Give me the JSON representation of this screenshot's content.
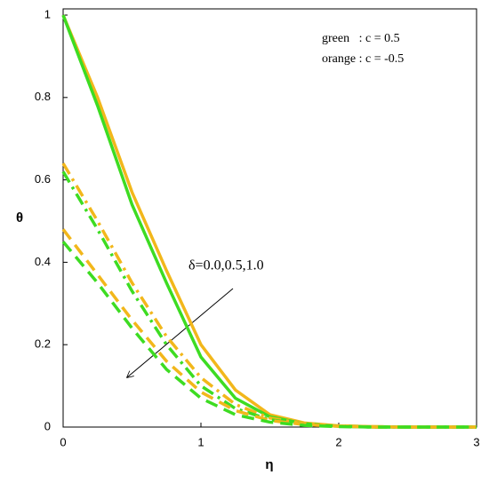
{
  "chart_data": {
    "type": "line",
    "x_label": "η",
    "y_label": "θ",
    "x": [
      0,
      0.25,
      0.5,
      0.75,
      1,
      1.25,
      1.5,
      1.75,
      2,
      2.25,
      2.5,
      2.75,
      3
    ],
    "series": [
      {
        "color": "#f2b71b",
        "dash": "solid",
        "values": [
          1.0,
          0.8,
          0.57,
          0.38,
          0.2,
          0.09,
          0.03,
          0.01,
          0.003,
          0.001,
          0,
          0,
          0
        ]
      },
      {
        "color": "#3ddc22",
        "dash": "solid",
        "values": [
          1.0,
          0.78,
          0.54,
          0.35,
          0.17,
          0.07,
          0.025,
          0.008,
          0.002,
          0,
          0,
          0,
          0
        ]
      },
      {
        "color": "#f2b71b",
        "dash": "dashdot",
        "values": [
          0.64,
          0.5,
          0.35,
          0.22,
          0.12,
          0.055,
          0.022,
          0.008,
          0.003,
          0.001,
          0,
          0,
          0
        ]
      },
      {
        "color": "#3ddc22",
        "dash": "dashdot",
        "values": [
          0.62,
          0.48,
          0.33,
          0.2,
          0.1,
          0.045,
          0.018,
          0.006,
          0.002,
          0,
          0,
          0,
          0
        ]
      },
      {
        "color": "#f2b71b",
        "dash": "dashed",
        "values": [
          0.48,
          0.37,
          0.26,
          0.16,
          0.085,
          0.04,
          0.016,
          0.006,
          0.002,
          0,
          0,
          0,
          0
        ]
      },
      {
        "color": "#3ddc22",
        "dash": "dashed",
        "values": [
          0.45,
          0.35,
          0.24,
          0.14,
          0.07,
          0.03,
          0.012,
          0.004,
          0.001,
          0,
          0,
          0,
          0
        ]
      }
    ],
    "xlim": [
      0,
      3
    ],
    "xticks": [
      0,
      1,
      2,
      3
    ],
    "ylim": [
      0,
      1
    ],
    "yticks": [
      0,
      0.2,
      0.4,
      0.6,
      0.8,
      1
    ],
    "annotations": [
      "green   : c = 0.5",
      "orange : c = -0.5",
      "δ=0.0,0.5,1.0"
    ]
  }
}
